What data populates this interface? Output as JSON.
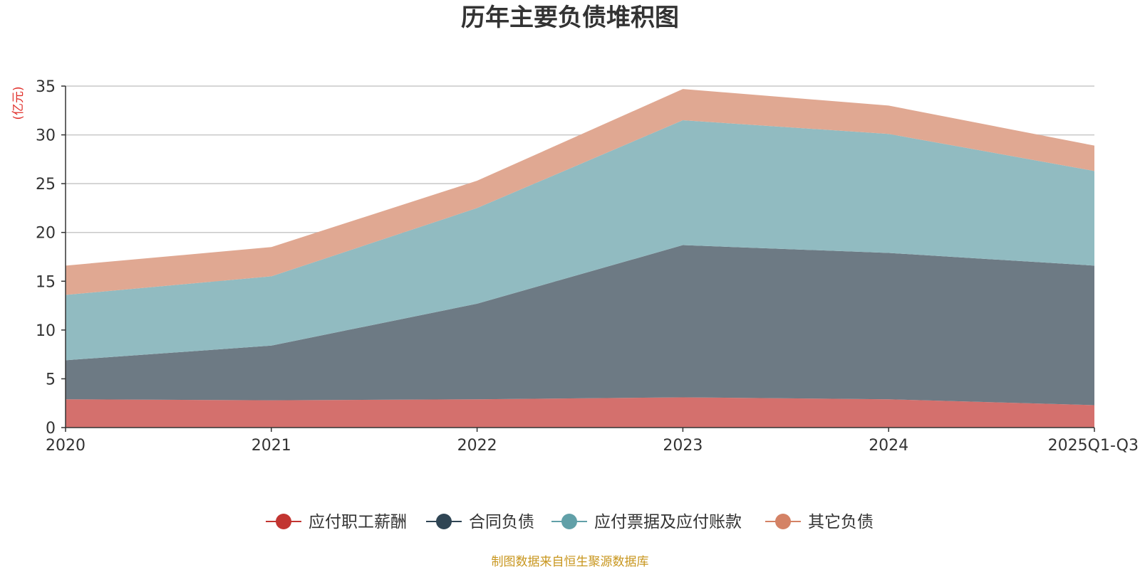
{
  "chart_data": {
    "type": "area",
    "stacked": true,
    "title": "历年主要负债堆积图",
    "ylabel": "(亿元)",
    "xlabel": "",
    "categories": [
      "2020",
      "2021",
      "2022",
      "2023",
      "2024",
      "2025Q1-Q3"
    ],
    "ylim": [
      0,
      35
    ],
    "yticks": [
      0,
      5,
      10,
      15,
      20,
      25,
      30,
      35
    ],
    "grid": true,
    "legend_position": "bottom-center",
    "series": [
      {
        "name": "应付职工薪酬",
        "color": "#c23531",
        "fill": "#d4706d",
        "values": [
          2.9,
          2.8,
          2.9,
          3.1,
          2.9,
          2.3
        ]
      },
      {
        "name": "合同负债",
        "color": "#2f4554",
        "fill": "#6d7a84",
        "values": [
          4.0,
          5.6,
          9.8,
          15.6,
          15.0,
          14.3
        ]
      },
      {
        "name": "应付票据及应付账款",
        "color": "#61a0a8",
        "fill": "#91bbc1",
        "values": [
          6.7,
          7.1,
          9.8,
          12.8,
          12.2,
          9.7
        ]
      },
      {
        "name": "其它负债",
        "color": "#d48265",
        "fill": "#e0a892",
        "values": [
          3.0,
          3.0,
          2.8,
          3.2,
          2.9,
          2.6
        ]
      }
    ]
  },
  "footer": {
    "source": "制图数据来自恒生聚源数据库"
  },
  "colors": {
    "title": "#333333",
    "ylabel": "#e0302b",
    "axis": "#333333",
    "grid": "#c8c8c8",
    "footer": "#c8961e"
  }
}
